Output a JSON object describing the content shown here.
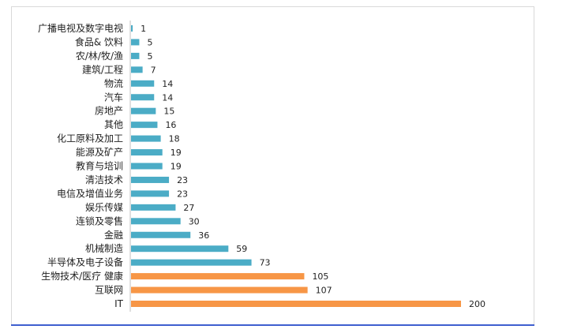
{
  "chart_data": {
    "type": "bar",
    "orientation": "horizontal",
    "categories": [
      "广播电视及数字电视",
      "食品& 饮料",
      "农/林/牧/渔",
      "建筑/工程",
      "物流",
      "汽车",
      "房地产",
      "其他",
      "化工原料及加工",
      "能源及矿产",
      "教育与培训",
      "清洁技术",
      "电信及增值业务",
      "娱乐传媒",
      "连锁及零售",
      "金融",
      "机械制造",
      "半导体及电子设备",
      "生物技术/医疗 健康",
      "互联网",
      "IT"
    ],
    "values": [
      1,
      5,
      5,
      7,
      14,
      14,
      15,
      16,
      18,
      19,
      19,
      23,
      23,
      27,
      30,
      36,
      59,
      73,
      105,
      107,
      200
    ],
    "highlight_top_n": 3,
    "xlim": [
      0,
      200
    ],
    "grid": false,
    "legend": "none",
    "colors": {
      "normal": "#4bacc6",
      "highlight": "#f79646",
      "axis": "#bfbfbf",
      "frame": "#d9d9d9",
      "rule": "#3f5fcf"
    }
  }
}
